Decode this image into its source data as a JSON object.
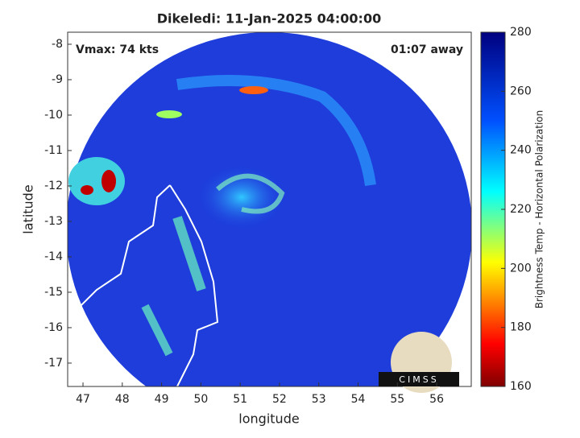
{
  "chart_data": {
    "type": "map",
    "title": "Dikeledi: 11-Jan-2025 04:00:00",
    "annotations": {
      "vmax": "Vmax: 74 kts",
      "away": "01:07 away"
    },
    "xlabel": "longitude",
    "ylabel": "latitude",
    "xlim": [
      46.61,
      56.88
    ],
    "xticks": [
      47,
      48,
      49,
      50,
      51,
      52,
      53,
      54,
      55,
      56
    ],
    "ylim": [
      -17.66,
      -7.66
    ],
    "yticks": [
      -8,
      -9,
      -10,
      -11,
      -12,
      -13,
      -14,
      -15,
      -16,
      -17
    ],
    "colorbar": {
      "label": "Brightness Temp - Horizontal Polarization",
      "lim": [
        160,
        280
      ],
      "ticks": [
        160,
        180,
        200,
        220,
        240,
        260,
        280
      ]
    },
    "logo": "CIMSS"
  }
}
